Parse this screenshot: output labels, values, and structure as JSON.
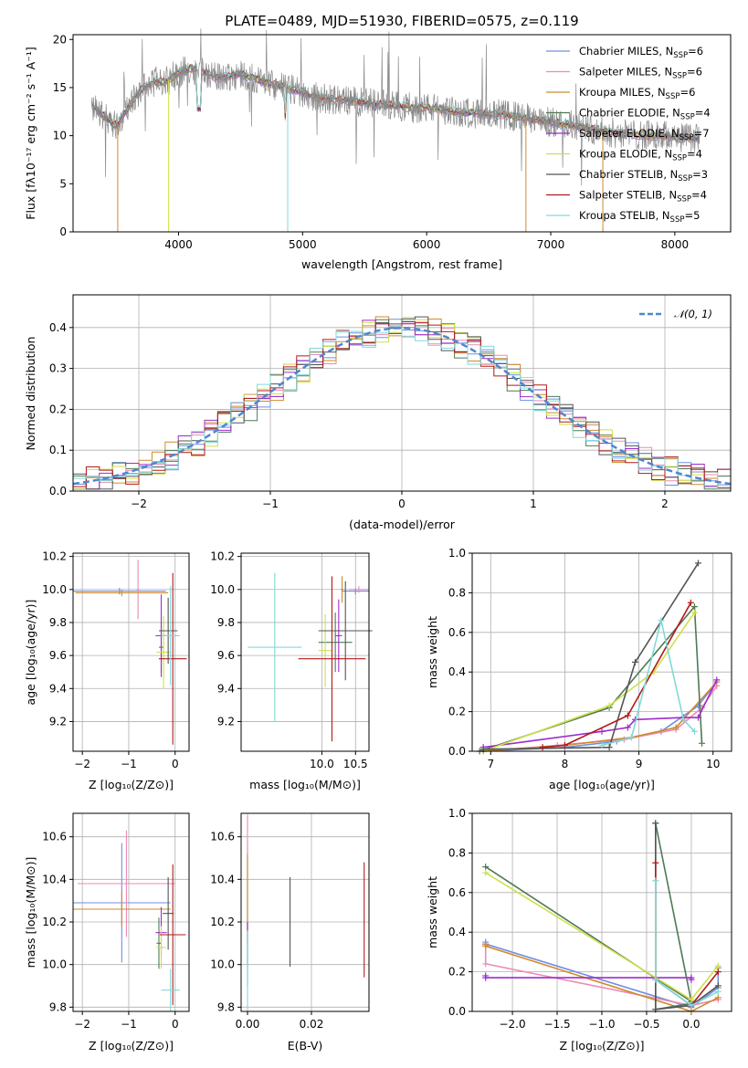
{
  "chart_data": [
    {
      "id": "spectrum",
      "type": "line",
      "title": "PLATE=0489, MJD=51930, FIBERID=0575, z=0.119",
      "xlabel": "wavelength [Angstrom, rest frame]",
      "ylabel": "Flux [fλ10⁻¹⁷ erg cm⁻² s⁻¹ A⁻¹]",
      "xlim": [
        3150,
        8450
      ],
      "ylim": [
        0,
        20.5
      ],
      "xticks": [
        4000,
        5000,
        6000,
        7000,
        8000
      ],
      "yticks": [
        0,
        5,
        10,
        15,
        20
      ],
      "grid": false,
      "legend_position": "upper right",
      "series": [
        {
          "name": "Chabrier MILES, N_SSP=6",
          "color": "#6f8fe0"
        },
        {
          "name": "Salpeter MILES, N_SSP=6",
          "color": "#ec8ab6"
        },
        {
          "name": "Kroupa MILES, N_SSP=6",
          "color": "#d08a2e"
        },
        {
          "name": "Chabrier ELODIE, N_SSP=4",
          "color": "#4e7a55"
        },
        {
          "name": "Salpeter ELODIE, N_SSP=7",
          "color": "#9d2dcb"
        },
        {
          "name": "Kroupa ELODIE, N_SSP=4",
          "color": "#cfe04a"
        },
        {
          "name": "Chabrier STELIB, N_SSP=3",
          "color": "#545454"
        },
        {
          "name": "Salpeter STELIB, N_SSP=4",
          "color": "#b21a1a"
        },
        {
          "name": "Kroupa STELIB, N_SSP=5",
          "color": "#7fdad8"
        }
      ],
      "data_color": "#8a8a8a",
      "continuum": [
        [
          3300,
          13.2
        ],
        [
          3400,
          12.0
        ],
        [
          3500,
          11.0
        ],
        [
          3600,
          13.0
        ],
        [
          3700,
          14.8
        ],
        [
          3800,
          15.6
        ],
        [
          3900,
          15.6
        ],
        [
          4000,
          16.5
        ],
        [
          4100,
          17.0
        ],
        [
          4200,
          16.7
        ],
        [
          4300,
          16.0
        ],
        [
          4400,
          16.2
        ],
        [
          4500,
          16.4
        ],
        [
          4600,
          16.0
        ],
        [
          4700,
          15.5
        ],
        [
          4800,
          15.2
        ],
        [
          4900,
          14.8
        ],
        [
          5000,
          14.5
        ],
        [
          5100,
          14.0
        ],
        [
          5200,
          13.8
        ],
        [
          5300,
          13.7
        ],
        [
          5400,
          13.6
        ],
        [
          5500,
          13.4
        ],
        [
          5600,
          13.3
        ],
        [
          5700,
          13.2
        ],
        [
          5800,
          13.0
        ],
        [
          5900,
          12.9
        ],
        [
          6000,
          12.9
        ],
        [
          6100,
          12.8
        ],
        [
          6200,
          12.5
        ],
        [
          6300,
          12.4
        ],
        [
          6400,
          12.3
        ],
        [
          6500,
          12.2
        ],
        [
          6600,
          12.2
        ],
        [
          6700,
          12.0
        ],
        [
          6800,
          11.8
        ],
        [
          6900,
          11.6
        ],
        [
          7000,
          11.4
        ],
        [
          7100,
          11.2
        ],
        [
          7200,
          11.0
        ],
        [
          7300,
          10.8
        ],
        [
          7400,
          10.5
        ],
        [
          7500,
          10.3
        ],
        [
          7600,
          10.2
        ],
        [
          7700,
          10.1
        ],
        [
          7800,
          10.0
        ],
        [
          7900,
          10.0
        ],
        [
          8000,
          9.9
        ],
        [
          8100,
          9.8
        ],
        [
          8200,
          9.7
        ]
      ]
    },
    {
      "id": "residuals",
      "type": "histogram",
      "xlabel": "(data-model)/error",
      "ylabel": "Normed distribution",
      "xlim": [
        -2.5,
        2.5
      ],
      "ylim": [
        0,
        0.48
      ],
      "xticks": [
        -2,
        -1,
        0,
        1,
        2
      ],
      "yticks": [
        0.0,
        0.1,
        0.2,
        0.3,
        0.4
      ],
      "grid": true,
      "legend": "𝒩(0, 1)",
      "legend_position": "upper right",
      "reference_curve": {
        "name": "𝒩(0, 1)",
        "mean": 0,
        "sigma": 1,
        "color": "#4f86d0"
      }
    },
    {
      "id": "age_vs_Z",
      "type": "errorbar",
      "xlabel": "Z [log₁₀(Z/Z⊙)]",
      "ylabel": "age  [log₁₀(age/yr)]",
      "xlim": [
        -2.2,
        0.3
      ],
      "ylim": [
        9.02,
        10.22
      ],
      "xticks": [
        -2,
        -1,
        0
      ],
      "yticks": [
        9.2,
        9.4,
        9.6,
        9.8,
        10.0,
        10.2
      ],
      "grid": true,
      "points": [
        {
          "series": 0,
          "x": -1.2,
          "xerr": 1.0,
          "y": 9.99,
          "yerr": 0.02
        },
        {
          "series": 1,
          "x": -0.8,
          "xerr": 0.03,
          "y": 10.0,
          "yerr": 0.18
        },
        {
          "series": 2,
          "x": -1.15,
          "xerr": 1.0,
          "y": 9.98,
          "yerr": 0.02
        },
        {
          "series": 3,
          "x": -0.3,
          "xerr": 0.05,
          "y": 9.65,
          "yerr": 0.15
        },
        {
          "series": 4,
          "x": -0.3,
          "xerr": 0.12,
          "y": 9.72,
          "yerr": 0.25
        },
        {
          "series": 5,
          "x": -0.25,
          "xerr": 0.15,
          "y": 9.62,
          "yerr": 0.22
        },
        {
          "series": 6,
          "x": -0.15,
          "xerr": 0.2,
          "y": 9.75,
          "yerr": 0.2
        },
        {
          "series": 7,
          "x": -0.05,
          "xerr": 0.3,
          "y": 9.58,
          "yerr": 0.52
        },
        {
          "series": 8,
          "x": -0.1,
          "xerr": 0.2,
          "y": 9.72,
          "yerr": 0.3
        }
      ]
    },
    {
      "id": "age_vs_mass",
      "type": "errorbar",
      "xlabel": "mass [log₁₀(M/M⊙)]",
      "xlim": [
        8.8,
        10.7
      ],
      "ylim": [
        9.02,
        10.22
      ],
      "xticks": [
        10.0,
        10.5
      ],
      "yticks": [
        9.2,
        9.4,
        9.6,
        9.8,
        10.0,
        10.2
      ],
      "grid": true,
      "points": [
        {
          "series": 0,
          "x": 10.5,
          "xerr": 0.2,
          "y": 9.99,
          "yerr": 0.02
        },
        {
          "series": 1,
          "x": 10.55,
          "xerr": 0.15,
          "y": 10.0,
          "yerr": 0.02
        },
        {
          "series": 2,
          "x": 10.3,
          "xerr": 0.02,
          "y": 10.0,
          "yerr": 0.08
        },
        {
          "series": 3,
          "x": 10.2,
          "xerr": 0.25,
          "y": 9.68,
          "yerr": 0.18
        },
        {
          "series": 4,
          "x": 10.25,
          "xerr": 0.05,
          "y": 9.72,
          "yerr": 0.22
        },
        {
          "series": 5,
          "x": 10.05,
          "xerr": 0.1,
          "y": 9.63,
          "yerr": 0.22
        },
        {
          "series": 6,
          "x": 10.35,
          "xerr": 0.4,
          "y": 9.75,
          "yerr": 0.3
        },
        {
          "series": 7,
          "x": 10.15,
          "xerr": 0.5,
          "y": 9.58,
          "yerr": 0.5
        },
        {
          "series": 8,
          "x": 9.3,
          "xerr": 0.4,
          "y": 9.65,
          "yerr": 0.45
        }
      ]
    },
    {
      "id": "massweight_vs_age",
      "type": "line",
      "xlabel": "age  [log₁₀(age/yr)]",
      "ylabel": "mass weight",
      "xlim": [
        6.75,
        10.25
      ],
      "ylim": [
        0,
        1
      ],
      "xticks": [
        7,
        8,
        9,
        10
      ],
      "yticks": [
        0.0,
        0.2,
        0.4,
        0.6,
        0.8,
        1.0
      ],
      "grid": true,
      "series": [
        {
          "series": 0,
          "x": [
            6.9,
            8.0,
            8.7,
            9.3,
            9.8,
            10.05
          ],
          "y": [
            0.0,
            0.02,
            0.05,
            0.1,
            0.23,
            0.35
          ]
        },
        {
          "series": 1,
          "x": [
            6.9,
            7.9,
            8.8,
            9.5,
            9.85,
            10.05
          ],
          "y": [
            0.0,
            0.03,
            0.06,
            0.11,
            0.22,
            0.33
          ]
        },
        {
          "series": 2,
          "x": [
            6.9,
            8.0,
            8.9,
            9.5,
            10.05
          ],
          "y": [
            0.0,
            0.03,
            0.07,
            0.12,
            0.35
          ]
        },
        {
          "series": 3,
          "x": [
            6.85,
            8.6,
            9.75,
            9.85
          ],
          "y": [
            0.0,
            0.22,
            0.73,
            0.04
          ]
        },
        {
          "series": 4,
          "x": [
            6.9,
            8.5,
            8.85,
            8.95,
            9.6,
            9.8,
            10.05
          ],
          "y": [
            0.02,
            0.1,
            0.12,
            0.16,
            0.17,
            0.17,
            0.36
          ]
        },
        {
          "series": 5,
          "x": [
            6.9,
            8.6,
            9.2,
            9.75
          ],
          "y": [
            0.0,
            0.23,
            0.4,
            0.7
          ]
        },
        {
          "series": 6,
          "x": [
            6.9,
            8.6,
            8.95,
            9.8
          ],
          "y": [
            0.01,
            0.02,
            0.45,
            0.95
          ]
        },
        {
          "series": 7,
          "x": [
            7.7,
            8.0,
            8.85,
            9.7
          ],
          "y": [
            0.02,
            0.03,
            0.18,
            0.75
          ]
        },
        {
          "series": 8,
          "x": [
            8.5,
            8.9,
            9.3,
            9.6,
            9.75
          ],
          "y": [
            0.03,
            0.07,
            0.66,
            0.16,
            0.1
          ]
        }
      ]
    },
    {
      "id": "mass_vs_Z",
      "type": "errorbar",
      "xlabel": "Z [log₁₀(Z/Z⊙)]",
      "ylabel": "mass [log₁₀(M/M⊙)]",
      "xlim": [
        -2.2,
        0.3
      ],
      "ylim": [
        9.78,
        10.71
      ],
      "xticks": [
        -2,
        -1,
        0
      ],
      "yticks": [
        9.8,
        10.0,
        10.2,
        10.4,
        10.6
      ],
      "grid": true,
      "points": [
        {
          "series": 0,
          "x": -1.15,
          "xerr": 1.05,
          "y": 10.29,
          "yerr": 0.28
        },
        {
          "series": 1,
          "x": -1.05,
          "xerr": 1.05,
          "y": 10.38,
          "yerr": 0.25
        },
        {
          "series": 2,
          "x": -1.15,
          "xerr": 1.05,
          "y": 10.26,
          "yerr": 0.08
        },
        {
          "series": 3,
          "x": -0.35,
          "xerr": 0.05,
          "y": 10.1,
          "yerr": 0.12
        },
        {
          "series": 4,
          "x": -0.3,
          "xerr": 0.12,
          "y": 10.15,
          "yerr": 0.12
        },
        {
          "series": 5,
          "x": -0.3,
          "xerr": 0.1,
          "y": 10.08,
          "yerr": 0.1
        },
        {
          "series": 6,
          "x": -0.15,
          "xerr": 0.12,
          "y": 10.24,
          "yerr": 0.17
        },
        {
          "series": 7,
          "x": -0.05,
          "xerr": 0.28,
          "y": 10.14,
          "yerr": 0.33
        },
        {
          "series": 8,
          "x": -0.1,
          "xerr": 0.2,
          "y": 9.88,
          "yerr": 0.1
        }
      ]
    },
    {
      "id": "mass_vs_ebv",
      "type": "errorbar",
      "xlabel": "E(B-V)",
      "xlim": [
        -0.002,
        0.038
      ],
      "ylim": [
        9.78,
        10.71
      ],
      "xticks": [
        0.0,
        0.02
      ],
      "yticks": [
        9.8,
        10.0,
        10.2,
        10.4,
        10.6
      ],
      "grid": true,
      "points": [
        {
          "series": 0,
          "x": 0.0,
          "xerr": 0.0,
          "y": 10.28,
          "yerr": 0.3
        },
        {
          "series": 1,
          "x": 0.0,
          "xerr": 0.0,
          "y": 10.4,
          "yerr": 0.3
        },
        {
          "series": 2,
          "x": 0.0,
          "xerr": 0.0,
          "y": 10.32,
          "yerr": 0.2
        },
        {
          "series": 3,
          "x": 0.0,
          "xerr": 0.0,
          "y": 10.05,
          "yerr": 0.15
        },
        {
          "series": 4,
          "x": 0.0,
          "xerr": 0.0,
          "y": 10.1,
          "yerr": 0.1
        },
        {
          "series": 5,
          "x": 0.0,
          "xerr": 0.0,
          "y": 10.0,
          "yerr": 0.1
        },
        {
          "series": 6,
          "x": 0.0133,
          "xerr": 0.0,
          "y": 10.2,
          "yerr": 0.21
        },
        {
          "series": 7,
          "x": 0.0365,
          "xerr": 0.0,
          "y": 10.21,
          "yerr": 0.27
        },
        {
          "series": 8,
          "x": 0.0,
          "xerr": 0.0,
          "y": 9.98,
          "yerr": 0.18
        }
      ]
    },
    {
      "id": "massweight_vs_Z",
      "type": "line",
      "xlabel": "Z [log₁₀(Z/Z⊙)]",
      "ylabel": "mass weight",
      "xlim": [
        -2.45,
        0.45
      ],
      "ylim": [
        0,
        1
      ],
      "xticks": [
        -2.0,
        -1.5,
        -1.0,
        -0.5,
        0.0
      ],
      "yticks": [
        0.0,
        0.2,
        0.4,
        0.6,
        0.8,
        1.0
      ],
      "grid": true,
      "series": [
        {
          "series": 0,
          "x": [
            -2.3,
            -2.3,
            0.0,
            0.3,
            0.3
          ],
          "y": [
            0.35,
            0.34,
            0.02,
            0.12,
            0.22
          ]
        },
        {
          "series": 1,
          "x": [
            -2.3,
            -2.3,
            0.0,
            0.3
          ],
          "y": [
            0.33,
            0.24,
            0.03,
            0.06
          ]
        },
        {
          "series": 2,
          "x": [
            -2.3,
            -2.3,
            0.0,
            0.3
          ],
          "y": [
            0.34,
            0.33,
            0.0,
            0.07
          ]
        },
        {
          "series": 3,
          "x": [
            -2.3,
            0.0,
            -0.4,
            -0.4,
            0.0
          ],
          "y": [
            0.73,
            0.05,
            0.95,
            0.01,
            0.04
          ]
        },
        {
          "series": 4,
          "x": [
            -2.3,
            -2.3,
            0.0,
            0.0
          ],
          "y": [
            0.18,
            0.17,
            0.17,
            0.16
          ]
        },
        {
          "series": 5,
          "x": [
            -2.3,
            0.0,
            0.3
          ],
          "y": [
            0.7,
            0.06,
            0.23
          ]
        },
        {
          "series": 6,
          "x": [
            -0.4,
            -0.4,
            0.0,
            0.3
          ],
          "y": [
            0.95,
            0.01,
            0.03,
            0.13
          ]
        },
        {
          "series": 7,
          "x": [
            -0.4,
            -0.4,
            0.0,
            0.3
          ],
          "y": [
            0.75,
            0.16,
            0.03,
            0.2
          ]
        },
        {
          "series": 8,
          "x": [
            -0.4,
            -0.4,
            0.0,
            0.3
          ],
          "y": [
            0.66,
            0.16,
            0.03,
            0.1
          ]
        }
      ]
    }
  ]
}
